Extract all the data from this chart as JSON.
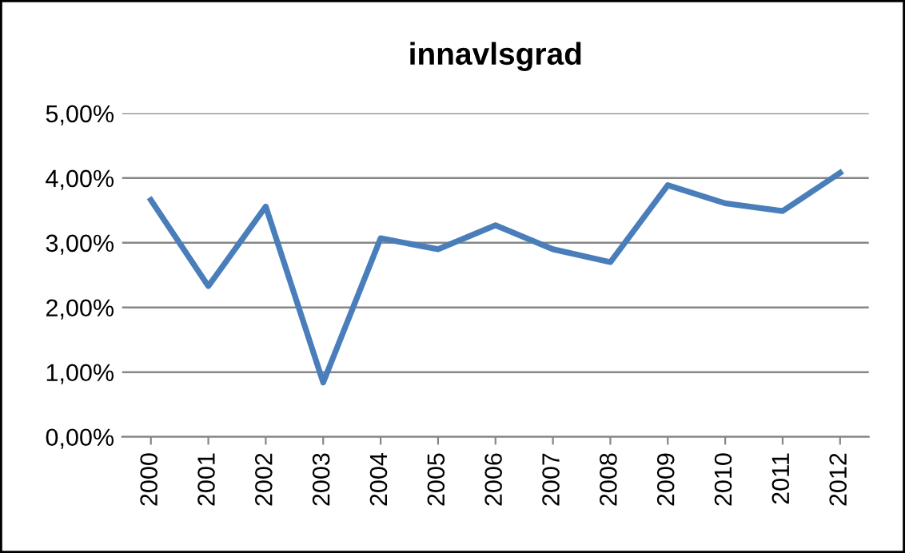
{
  "chart_data": {
    "type": "line",
    "title": "innavlsgrad",
    "categories": [
      "2000",
      "2001",
      "2002",
      "2003",
      "2004",
      "2005",
      "2006",
      "2007",
      "2008",
      "2009",
      "2010",
      "2011",
      "2012"
    ],
    "series": [
      {
        "color": "#4a7ebb",
        "values": [
          3.66,
          2.33,
          3.56,
          0.84,
          3.07,
          2.9,
          3.27,
          2.9,
          2.7,
          3.89,
          3.61,
          3.49,
          4.08
        ]
      }
    ],
    "ylim": [
      0,
      5
    ],
    "yticks": [
      {
        "value": 0,
        "label": "0,00%"
      },
      {
        "value": 1,
        "label": "1,00%"
      },
      {
        "value": 2,
        "label": "2,00%"
      },
      {
        "value": 3,
        "label": "3,00%"
      },
      {
        "value": 4,
        "label": "4,00%"
      },
      {
        "value": 5,
        "label": "5,00%"
      }
    ],
    "grid": "y",
    "marker": "none",
    "line_style": "solid"
  }
}
